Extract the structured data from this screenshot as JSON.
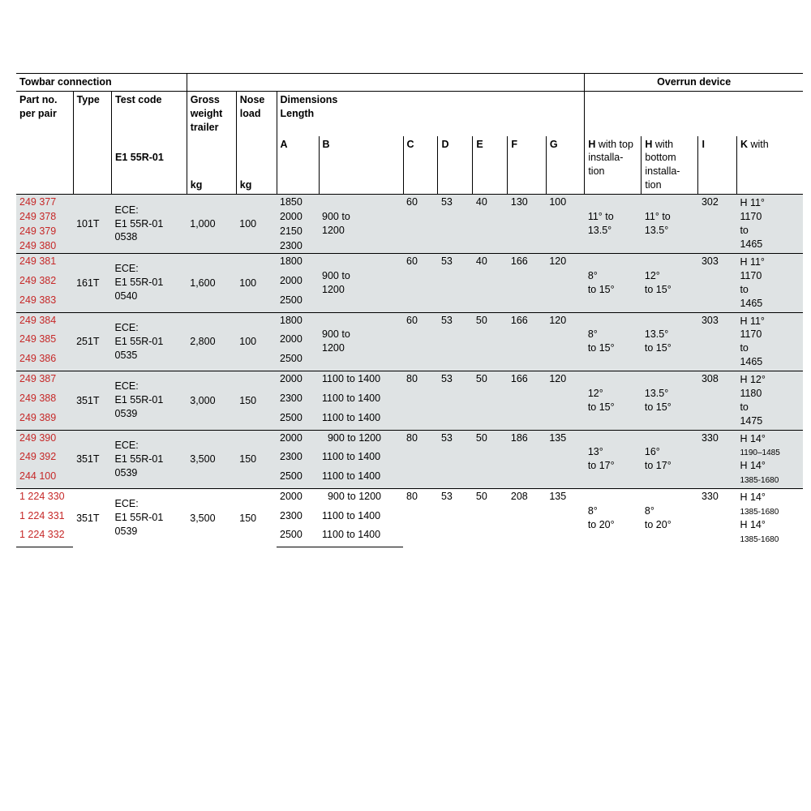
{
  "sections": {
    "towbar": "Towbar connection",
    "overrun": "Overrun device"
  },
  "headers": {
    "part": "Part no. per pair",
    "type": "Type",
    "test": "Test code",
    "test_sub": "E1 55R-01",
    "gw": "Gross weight trailer",
    "gw_unit": "kg",
    "nose": "Nose load",
    "nose_unit": "kg",
    "dims": "Dimensions",
    "length": "Length",
    "A": "A",
    "B": "B",
    "C": "C",
    "D": "D",
    "E": "E",
    "F": "F",
    "G": "G",
    "H1": "H",
    "H1_sub": "with top installa-tion",
    "H2": "H",
    "H2_sub": "with bottom installa-tion",
    "I": "I",
    "K": "K",
    "K_sub": "with"
  },
  "groups": [
    {
      "shaded": true,
      "parts": [
        "249 377",
        "249 378",
        "249 379",
        "249 380"
      ],
      "type": "101T",
      "test": [
        "ECE:",
        "E1 55R-01",
        "0538"
      ],
      "gw": "1,000",
      "nose": "100",
      "A": [
        "1850",
        "2000",
        "2150",
        "2300"
      ],
      "B": "900 to 1200",
      "C": "60",
      "D": "53",
      "E": "40",
      "F": "130",
      "G": "100",
      "H1": [
        "11° to",
        "13.5°"
      ],
      "H2": [
        "11° to",
        "13.5°"
      ],
      "I": "302",
      "K": [
        "H 11°",
        "1170",
        "to",
        "1465"
      ]
    },
    {
      "shaded": true,
      "parts": [
        "249 381",
        "249 382",
        "249 383"
      ],
      "type": "161T",
      "test": [
        "ECE:",
        "E1 55R-01",
        "0540"
      ],
      "gw": "1,600",
      "nose": "100",
      "A": [
        "1800",
        "2000",
        "2500"
      ],
      "B": "900 to 1200",
      "C": "60",
      "D": "53",
      "E": "40",
      "F": "166",
      "G": "120",
      "H1": [
        "8°",
        "to 15°"
      ],
      "H2": [
        "12°",
        "to 15°"
      ],
      "I": "303",
      "K": [
        "H 11°",
        "1170",
        "to",
        "1465"
      ]
    },
    {
      "shaded": true,
      "parts": [
        "249 384",
        "249 385",
        "249 386"
      ],
      "type": "251T",
      "test": [
        "ECE:",
        "E1 55R-01",
        "0535"
      ],
      "gw": "2,800",
      "nose": "100",
      "A": [
        "1800",
        "2000",
        "2500"
      ],
      "B": "900 to 1200",
      "C": "60",
      "D": "53",
      "E": "50",
      "F": "166",
      "G": "120",
      "H1": [
        "8°",
        "to 15°"
      ],
      "H2": [
        "13.5°",
        "to 15°"
      ],
      "I": "303",
      "K": [
        "H 11°",
        "1170",
        "to",
        "1465"
      ]
    },
    {
      "shaded": true,
      "parts": [
        "249 387",
        "249 388",
        "249 389"
      ],
      "type": "351T",
      "test": [
        "ECE:",
        "E1 55R-01",
        "0539"
      ],
      "gw": "3,000",
      "nose": "150",
      "A": [
        "2000",
        "2300",
        "2500"
      ],
      "B_rows": [
        "1100 to 1400",
        "1100 to 1400",
        "1100 to 1400"
      ],
      "C": "80",
      "D": "53",
      "E": "50",
      "F": "166",
      "G": "120",
      "H1": [
        "12°",
        "to 15°"
      ],
      "H2": [
        "13.5°",
        "to 15°"
      ],
      "I": "308",
      "K": [
        "H 12°",
        "1180",
        "to",
        "1475"
      ]
    },
    {
      "shaded": true,
      "parts": [
        "249 390",
        "249 392",
        "244 100"
      ],
      "type": "351T",
      "test": [
        "ECE:",
        "E1 55R-01",
        "0539"
      ],
      "gw": "3,500",
      "nose": "150",
      "A": [
        "2000",
        "2300",
        "2500"
      ],
      "B_rows": [
        "  900 to 1200",
        "1100 to 1400",
        "1100 to 1400"
      ],
      "C": "80",
      "D": "53",
      "E": "50",
      "F": "186",
      "G": "135",
      "H1": [
        "13°",
        "to 17°"
      ],
      "H2": [
        "16°",
        "to 17°"
      ],
      "I": "330",
      "K_rows": [
        [
          "H 14°",
          "1190–1485"
        ],
        [
          "H 14°",
          "1385-1680"
        ]
      ]
    },
    {
      "shaded": false,
      "parts": [
        "1 224 330",
        "1 224 331",
        "1 224 332"
      ],
      "type": "351T",
      "test": [
        "ECE:",
        "E1 55R-01",
        "0539"
      ],
      "gw": "3,500",
      "nose": "150",
      "A": [
        "2000",
        "2300",
        "2500"
      ],
      "B_rows": [
        "  900 to 1200",
        "1100 to 1400",
        "1100 to 1400"
      ],
      "C": "80",
      "D": "53",
      "E": "50",
      "F": "208",
      "G": "135",
      "H1": [
        "8°",
        "to 20°"
      ],
      "H2": [
        "8°",
        "to 20°"
      ],
      "I": "330",
      "K_rows": [
        [
          "H 14°",
          "1385-1680"
        ],
        [
          "H 14°",
          "1385-1680"
        ]
      ]
    }
  ]
}
